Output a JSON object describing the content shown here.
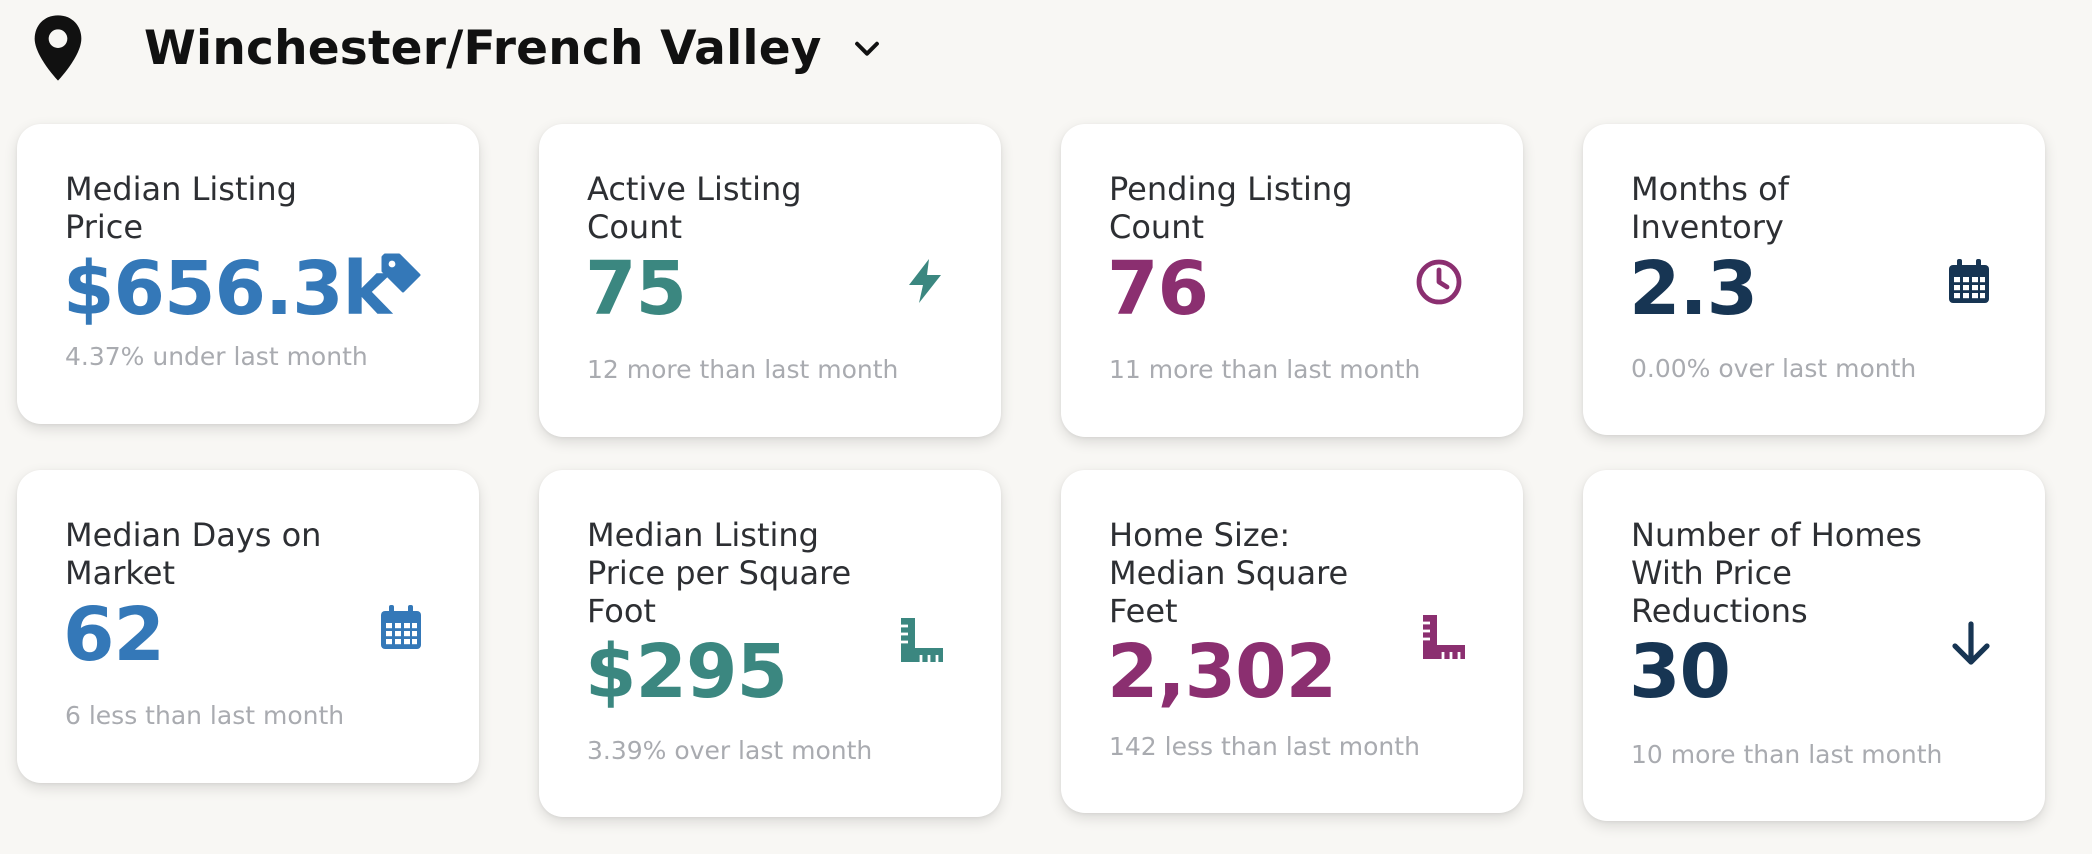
{
  "header": {
    "location": "Winchester/French Valley",
    "pin_icon": "location-pin-icon",
    "dropdown_icon": "chevron-down-icon"
  },
  "colors": {
    "blue": "#3478b8",
    "teal": "#3b8780",
    "purple": "#8b2f70",
    "navy": "#173553",
    "background": "#f8f7f4",
    "subtext": "#a9abb0"
  },
  "cards": [
    {
      "label": "Median Listing Price",
      "value": "$656.3k",
      "sub": "4.37% under last month",
      "icon": "price-tag-icon",
      "color": "#3478b8"
    },
    {
      "label": "Active Listing Count",
      "value": "75",
      "sub": "12 more than last month",
      "icon": "lightning-bolt-icon",
      "color": "#3b8780"
    },
    {
      "label": "Pending Listing Count",
      "value": "76",
      "sub": "11 more than last month",
      "icon": "clock-icon",
      "color": "#8b2f70"
    },
    {
      "label": "Months of Inventory",
      "value": "2.3",
      "sub": "0.00% over last month",
      "icon": "calendar-icon",
      "color": "#173553"
    },
    {
      "label": "Median Days on Market",
      "value": "62",
      "sub": "6 less than last month",
      "icon": "calendar-icon",
      "color": "#3478b8"
    },
    {
      "label": "Median Listing Price per Square Foot",
      "value": "$295",
      "sub": "3.39% over last month",
      "icon": "ruler-icon",
      "color": "#3b8780"
    },
    {
      "label": "Home Size: Median Square Feet",
      "value": "2,302",
      "sub": "142 less than last month",
      "icon": "ruler-icon",
      "color": "#8b2f70"
    },
    {
      "label": "Number of Homes With Price Reductions",
      "value": "30",
      "sub": "10 more than last month",
      "icon": "arrow-down-icon",
      "color": "#173553"
    }
  ]
}
